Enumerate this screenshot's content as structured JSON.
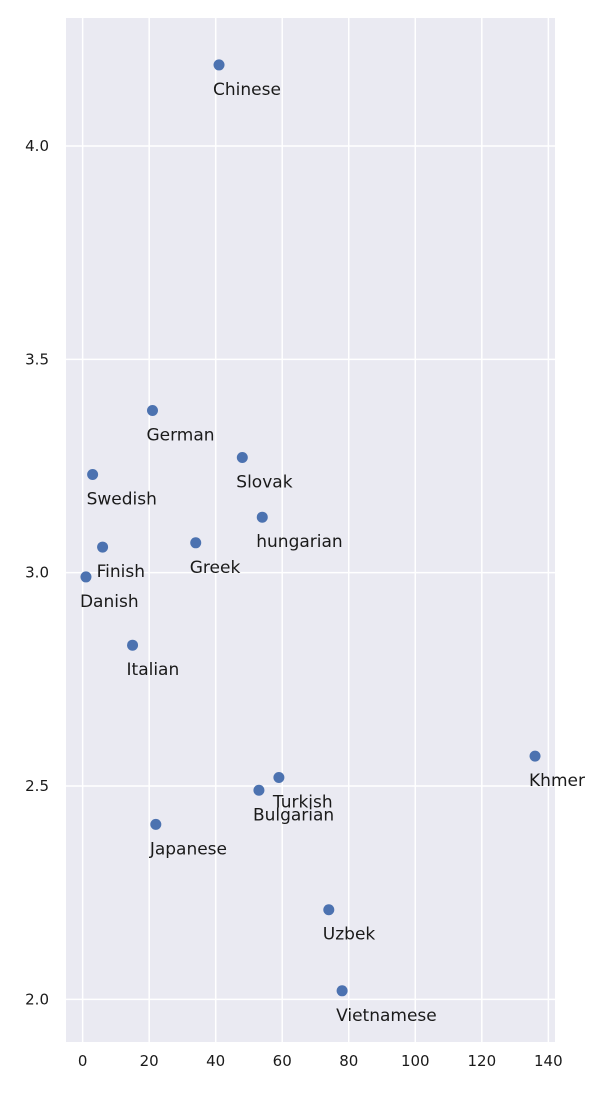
{
  "chart_data": {
    "type": "scatter",
    "title": "",
    "xlabel": "",
    "ylabel": "",
    "xlim": [
      -5,
      142
    ],
    "ylim": [
      1.9,
      4.3
    ],
    "x_ticks": [
      0,
      20,
      40,
      60,
      80,
      100,
      120,
      140
    ],
    "y_ticks": [
      2.0,
      2.5,
      3.0,
      3.5,
      4.0
    ],
    "x_tick_labels": [
      "0",
      "20",
      "40",
      "60",
      "80",
      "100",
      "120",
      "140"
    ],
    "y_tick_labels": [
      "2.0",
      "2.5",
      "3.0",
      "3.5",
      "4.0"
    ],
    "grid": true,
    "background_color": "#eaeaf2",
    "point_color": "#4c72b0",
    "points": [
      {
        "label": "Chinese",
        "x": 41,
        "y": 4.19
      },
      {
        "label": "German",
        "x": 21,
        "y": 3.38
      },
      {
        "label": "Swedish",
        "x": 3,
        "y": 3.23
      },
      {
        "label": "Slovak",
        "x": 48,
        "y": 3.27
      },
      {
        "label": "hungarian",
        "x": 54,
        "y": 3.13
      },
      {
        "label": "Finish",
        "x": 6,
        "y": 3.06
      },
      {
        "label": "Greek",
        "x": 34,
        "y": 3.07
      },
      {
        "label": "Danish",
        "x": 1,
        "y": 2.99
      },
      {
        "label": "Italian",
        "x": 15,
        "y": 2.83
      },
      {
        "label": "Khmer",
        "x": 136,
        "y": 2.57
      },
      {
        "label": "Turkish",
        "x": 59,
        "y": 2.52
      },
      {
        "label": "Bulgarian",
        "x": 53,
        "y": 2.49
      },
      {
        "label": "Japanese",
        "x": 22,
        "y": 2.41
      },
      {
        "label": "Uzbek",
        "x": 74,
        "y": 2.21
      },
      {
        "label": "Vietnamese",
        "x": 78,
        "y": 2.02
      }
    ]
  }
}
